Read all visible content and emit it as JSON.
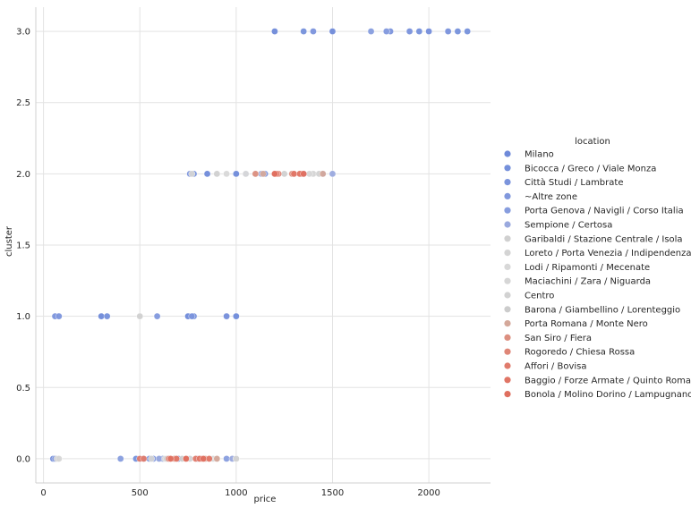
{
  "chart_data": {
    "type": "scatter",
    "xlabel": "price",
    "ylabel": "cluster",
    "xlim": [
      -40,
      2320
    ],
    "ylim": [
      -0.17,
      3.17
    ],
    "xticks": [
      0,
      500,
      1000,
      1500,
      2000
    ],
    "yticks": [
      0.0,
      0.5,
      1.0,
      1.5,
      2.0,
      2.5,
      3.0
    ],
    "xtick_labels": [
      "0",
      "500",
      "1000",
      "1500",
      "2000"
    ],
    "ytick_labels": [
      "0.0",
      "0.5",
      "1.0",
      "1.5",
      "2.0",
      "2.5",
      "3.0"
    ],
    "grid": true,
    "legend": {
      "title": "location",
      "placement": "right"
    },
    "series": [
      {
        "name": "Milano",
        "color": "#6f8ad9",
        "x": [
          1200,
          1500,
          1900,
          2000,
          2100,
          850,
          1000,
          950,
          1000,
          50,
          300,
          750,
          1000,
          500,
          550
        ],
        "y": [
          3,
          3,
          3,
          3,
          3,
          2,
          2,
          1,
          1,
          0,
          1,
          1,
          0,
          0,
          0
        ]
      },
      {
        "name": "Bicocca / Greco / Viale Monza",
        "color": "#7590db",
        "x": [
          1350,
          1950,
          2150,
          2200,
          1000,
          780,
          330,
          780,
          1000,
          480,
          600
        ],
        "y": [
          3,
          3,
          3,
          3,
          2,
          2,
          1,
          1,
          1,
          0,
          0
        ]
      },
      {
        "name": "Città Studi / Lambrate",
        "color": "#7b94dc",
        "x": [
          1400,
          1800,
          2000,
          760,
          1150,
          60,
          80,
          950,
          770,
          520,
          570,
          620
        ],
        "y": [
          3,
          3,
          3,
          2,
          2,
          1,
          1,
          1,
          1,
          0,
          0,
          0
        ]
      },
      {
        "name": "~Altre zone",
        "color": "#8198dd",
        "x": [
          1780,
          1900,
          2100,
          1350,
          590,
          60,
          700,
          800
        ],
        "y": [
          3,
          3,
          3,
          2,
          1,
          0,
          0,
          0
        ]
      },
      {
        "name": "Porta Genova / Navigli / Corso Italia",
        "color": "#879dde",
        "x": [
          1700,
          1780,
          1450,
          400,
          950
        ],
        "y": [
          3,
          3,
          2,
          0,
          0
        ]
      },
      {
        "name": "Sempione / Certosa",
        "color": "#9aa9de",
        "x": [
          1500,
          1050,
          1130,
          600,
          760,
          980
        ],
        "y": [
          2,
          2,
          2,
          0,
          0,
          0
        ]
      },
      {
        "name": "Garibaldi / Stazione Centrale / Isola",
        "color": "#d0d0d0",
        "x": [
          900,
          1250,
          500,
          70,
          1000
        ],
        "y": [
          2,
          2,
          1,
          0,
          0
        ]
      },
      {
        "name": "Loreto / Porta Venezia / Indipendenza",
        "color": "#d4d4d4",
        "x": [
          770,
          1400,
          560,
          680
        ],
        "y": [
          2,
          2,
          0,
          0
        ]
      },
      {
        "name": "Lodi / Ripamonti / Mecenate",
        "color": "#d8d8d8",
        "x": [
          950,
          1050,
          630,
          880
        ],
        "y": [
          2,
          2,
          0,
          0
        ]
      },
      {
        "name": "Maciachini / Zara / Niguarda",
        "color": "#d6d6d6",
        "x": [
          1200,
          1380,
          80,
          760
        ],
        "y": [
          2,
          2,
          0,
          0
        ]
      },
      {
        "name": "Centro",
        "color": "#d2d2d2",
        "x": [
          1300,
          1430,
          900,
          1000
        ],
        "y": [
          2,
          2,
          0,
          0
        ]
      },
      {
        "name": "Barona / Giambellino / Lorenteggio",
        "color": "#cccccc",
        "x": [
          1100,
          640,
          720
        ],
        "y": [
          2,
          0,
          0
        ]
      },
      {
        "name": "Porta Romana / Monte Nero",
        "color": "#d4a89a",
        "x": [
          1140,
          1450,
          840,
          900
        ],
        "y": [
          2,
          2,
          0,
          0
        ]
      },
      {
        "name": "San Siro / Fiera",
        "color": "#dc8f80",
        "x": [
          1100,
          1290,
          680,
          820
        ],
        "y": [
          2,
          2,
          0,
          0
        ]
      },
      {
        "name": "Rogoredo / Chiesa Rossa",
        "color": "#df8677",
        "x": [
          1200,
          1220,
          650,
          740
        ],
        "y": [
          2,
          2,
          0,
          0
        ]
      },
      {
        "name": "Affori / Bovisa",
        "color": "#e07b6c",
        "x": [
          1210,
          1340,
          500,
          520,
          790
        ],
        "y": [
          2,
          2,
          0,
          0,
          0
        ]
      },
      {
        "name": "Baggio / Forze Armate / Quinto Romano",
        "color": "#e07565",
        "x": [
          1300,
          1330,
          690,
          810,
          860
        ],
        "y": [
          2,
          2,
          0,
          0,
          0
        ]
      },
      {
        "name": "Bonola / Molino Dorino / Lampugnano",
        "color": "#df6f5f",
        "x": [
          1200,
          1350,
          660,
          740,
          830
        ],
        "y": [
          2,
          2,
          0,
          0,
          0
        ]
      }
    ]
  }
}
